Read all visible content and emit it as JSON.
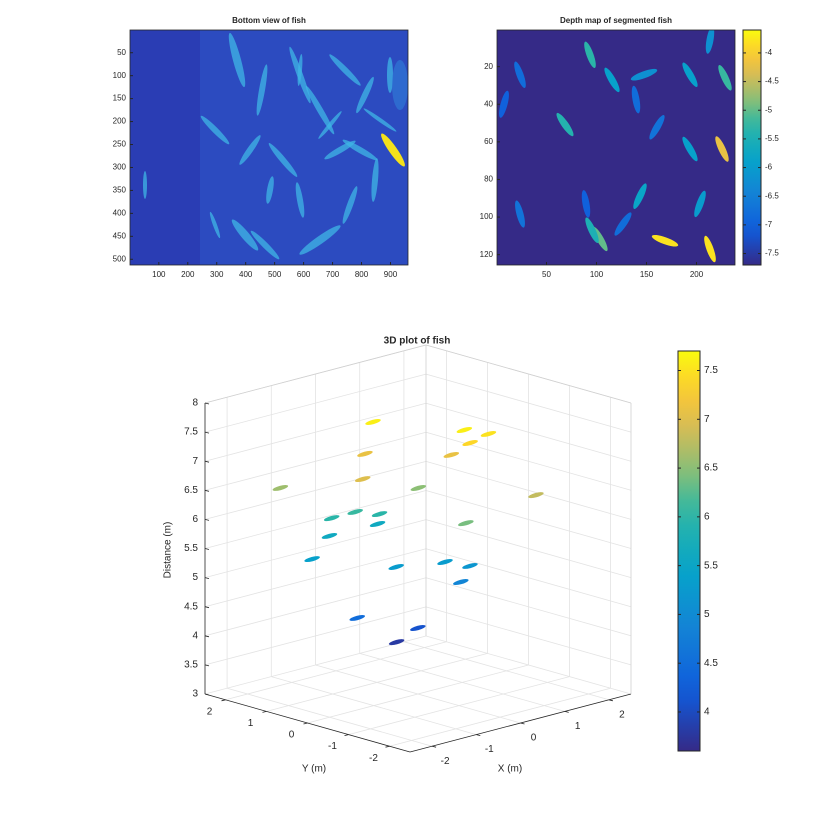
{
  "chart_data": [
    {
      "type": "image",
      "title": "Bottom view of fish",
      "xlim": [
        0.5,
        960.5
      ],
      "ylim": [
        0.5,
        512.5
      ],
      "y_reverse": true,
      "xticks": [
        100,
        200,
        300,
        400,
        500,
        600,
        700,
        800,
        900
      ],
      "yticks": [
        50,
        100,
        150,
        200,
        250,
        300,
        350,
        400,
        450,
        500
      ]
    },
    {
      "type": "image",
      "title": "Depth map of segmented fish",
      "xlim": [
        0.5,
        238.5
      ],
      "ylim": [
        0.5,
        125.5
      ],
      "y_reverse": true,
      "xticks": [
        50,
        100,
        150,
        200
      ],
      "yticks": [
        20,
        40,
        60,
        80,
        100,
        120
      ],
      "colormap": "parula",
      "clim": [
        -7.7,
        -3.6
      ],
      "cticks": [
        -4,
        -4.5,
        -5,
        -5.5,
        -6,
        -6.5,
        -7,
        -7.5
      ],
      "x": [
        93.5,
        115.5,
        139.5,
        147.5,
        193.5,
        228.5,
        213.5,
        68.5,
        23.5,
        7.5,
        160.5,
        193.5,
        225.5,
        143.5,
        203.5,
        23.5,
        103.5,
        95.5,
        168.5,
        213.5,
        126.5,
        89.5
      ],
      "y": [
        13.7,
        27,
        37.5,
        24.3,
        24.3,
        25.9,
        5.8,
        50.8,
        24.3,
        40,
        52.2,
        63.8,
        63.8,
        88.9,
        93,
        98.4,
        111.6,
        107,
        112.6,
        117,
        103.7,
        93
      ],
      "values": [
        -5.3,
        -5.9,
        -6.8,
        -6.2,
        -5.9,
        -5.2,
        -6.2,
        -5.4,
        -6.8,
        -7.0,
        -6.7,
        -5.9,
        -4.2,
        -5.8,
        -6.0,
        -6.7,
        -5.0,
        -5.5,
        -3.8,
        -3.8,
        -6.8,
        -7.0
      ]
    },
    {
      "type": "scatter3d",
      "title": "3D plot of fish",
      "xlabel": "X (m)",
      "ylabel": "Y (m)",
      "zlabel": "Distance (m)",
      "xlim": [
        -2.5,
        2.5
      ],
      "ylim": [
        -2.5,
        2.5
      ],
      "zlim": [
        3,
        8
      ],
      "xticks": [
        -2,
        -1,
        0,
        1,
        2
      ],
      "yticks": [
        -2,
        -1,
        0,
        1,
        2
      ],
      "zticks": [
        3,
        3.5,
        4,
        4.5,
        5,
        5.5,
        6,
        6.5,
        7,
        7.5,
        8
      ],
      "grid": true,
      "colormap": "parula",
      "clim": [
        3.6,
        7.7
      ],
      "cticks": [
        4,
        4.5,
        5,
        5.5,
        6,
        6.5,
        7,
        7.5
      ],
      "x": [
        -0.35,
        -0.56,
        -1.76,
        -1.39,
        0.1,
        0.39,
        0.75,
        0.4,
        0.41,
        0.46,
        -0.56,
        -0.96,
        -0.67,
        -0.23,
        0.3,
        -0.76,
        -1.44,
        -0.54,
        0.24,
        0.61,
        0.56,
        -1.18,
        0.08,
        -0.03
      ],
      "y": [
        0.72,
        0.69,
        1.46,
        -0.15,
        0.1,
        -0.71,
        -0.91,
        -0.84,
        -0.37,
        -2.38,
        -1.77,
        1.07,
        0.81,
        0.69,
        1.31,
        1.34,
        1.03,
        -0.05,
        -0.4,
        -0.61,
        -0.44,
        0.21,
        0.09,
        0.49
      ],
      "z": [
        7.6,
        7.1,
        6.6,
        7.0,
        6.5,
        7.6,
        7.5,
        7.4,
        7.1,
        6.8,
        6.4,
        6.0,
        6.1,
        6.0,
        5.6,
        5.6,
        5.4,
        5.3,
        5.3,
        5.2,
        4.9,
        4.5,
        4.1,
        3.8
      ]
    }
  ]
}
